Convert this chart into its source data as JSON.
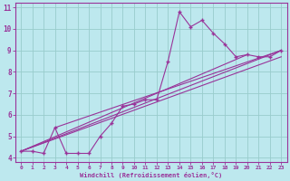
{
  "xlabel": "Windchill (Refroidissement éolien,°C)",
  "xlim": [
    -0.5,
    23.5
  ],
  "ylim": [
    3.8,
    11.2
  ],
  "yticks": [
    4,
    5,
    6,
    7,
    8,
    9,
    10,
    11
  ],
  "xticks": [
    0,
    1,
    2,
    3,
    4,
    5,
    6,
    7,
    8,
    9,
    10,
    11,
    12,
    13,
    14,
    15,
    16,
    17,
    18,
    19,
    20,
    21,
    22,
    23
  ],
  "bg_color": "#bde8ee",
  "line_color": "#993399",
  "grid_color": "#99cccc",
  "main_line": {
    "x": [
      0,
      1,
      2,
      3,
      4,
      5,
      6,
      7,
      8,
      9,
      10,
      11,
      12,
      13,
      14,
      15,
      16,
      17,
      18,
      19,
      20,
      21,
      22,
      23
    ],
    "y": [
      4.3,
      4.3,
      4.2,
      5.4,
      4.2,
      4.2,
      4.2,
      5.0,
      5.6,
      6.4,
      6.5,
      6.7,
      6.7,
      8.5,
      10.8,
      10.1,
      10.4,
      9.8,
      9.3,
      8.7,
      8.8,
      8.7,
      8.7,
      9.0
    ]
  },
  "straight_lines": [
    {
      "x": [
        0,
        23
      ],
      "y": [
        4.3,
        9.0
      ]
    },
    {
      "x": [
        0,
        23
      ],
      "y": [
        4.3,
        8.7
      ]
    },
    {
      "x": [
        3,
        23
      ],
      "y": [
        5.4,
        9.0
      ]
    },
    {
      "x": [
        0,
        20
      ],
      "y": [
        4.3,
        8.8
      ]
    }
  ]
}
